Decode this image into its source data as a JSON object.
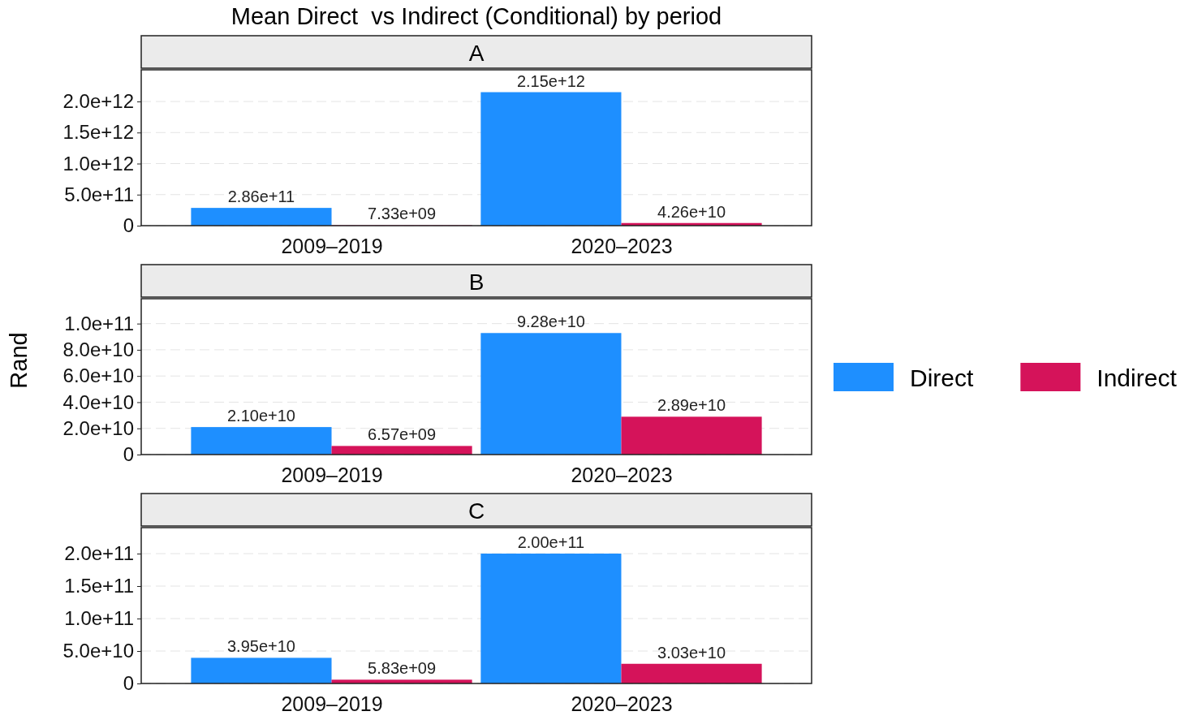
{
  "chart_data": [
    {
      "type": "bar",
      "title": "Mean Direct  vs Indirect (Conditional) by period",
      "subtitle": "A",
      "categories": [
        "2009–2019",
        "2020–2023"
      ],
      "ylim": [
        0,
        2510000000000.0
      ],
      "yticks": [
        {
          "value": 0,
          "label": "0"
        },
        {
          "value": 500000000000.0,
          "label": "5.0e+11"
        },
        {
          "value": 1000000000000.0,
          "label": "1.0e+12"
        },
        {
          "value": 1500000000000.0,
          "label": "1.5e+12"
        },
        {
          "value": 2000000000000.0,
          "label": "2.0e+12"
        }
      ],
      "grid": "y",
      "series": [
        {
          "color": "#1e8fff",
          "values": [
            286000000000.0,
            2150000000000.0
          ],
          "value_labels": [
            "2.86e+11",
            "2.15e+12"
          ]
        },
        {
          "color": "#d5135a",
          "values": [
            7330000000.0,
            42600000000.0
          ],
          "value_labels": [
            "7.33e+09",
            "4.26e+10"
          ]
        }
      ]
    },
    {
      "type": "bar",
      "subtitle": "B",
      "ylabel": "Rand",
      "categories": [
        "2009–2019",
        "2020–2023"
      ],
      "ylim": [
        0,
        119000000000.0
      ],
      "yticks": [
        {
          "value": 0,
          "label": "0"
        },
        {
          "value": 20000000000.0,
          "label": "2.0e+10"
        },
        {
          "value": 40000000000.0,
          "label": "4.0e+10"
        },
        {
          "value": 60000000000.0,
          "label": "6.0e+10"
        },
        {
          "value": 80000000000.0,
          "label": "8.0e+10"
        },
        {
          "value": 100000000000.0,
          "label": "1.0e+11"
        }
      ],
      "grid": "y",
      "legend": "right",
      "series": [
        {
          "name": "Direct",
          "color": "#1e8fff",
          "values": [
            21000000000.0,
            92800000000.0
          ],
          "value_labels": [
            "2.10e+10",
            "9.28e+10"
          ]
        },
        {
          "name": "Indirect",
          "color": "#d5135a",
          "values": [
            6570000000.0,
            28900000000.0
          ],
          "value_labels": [
            "6.57e+09",
            "2.89e+10"
          ]
        }
      ]
    },
    {
      "type": "bar",
      "subtitle": "C",
      "categories": [
        "2009–2019",
        "2020–2023"
      ],
      "ylim": [
        0,
        240000000000.0
      ],
      "yticks": [
        {
          "value": 0,
          "label": "0"
        },
        {
          "value": 50000000000.0,
          "label": "5.0e+10"
        },
        {
          "value": 100000000000.0,
          "label": "1.0e+11"
        },
        {
          "value": 150000000000.0,
          "label": "1.5e+11"
        },
        {
          "value": 200000000000.0,
          "label": "2.0e+11"
        }
      ],
      "grid": "y",
      "series": [
        {
          "color": "#1e8fff",
          "values": [
            39500000000.0,
            200000000000.0
          ],
          "value_labels": [
            "3.95e+10",
            "2.00e+11"
          ]
        },
        {
          "color": "#d5135a",
          "values": [
            5830000000.0,
            30300000000.0
          ],
          "value_labels": [
            "5.83e+09",
            "3.03e+10"
          ]
        }
      ]
    }
  ]
}
